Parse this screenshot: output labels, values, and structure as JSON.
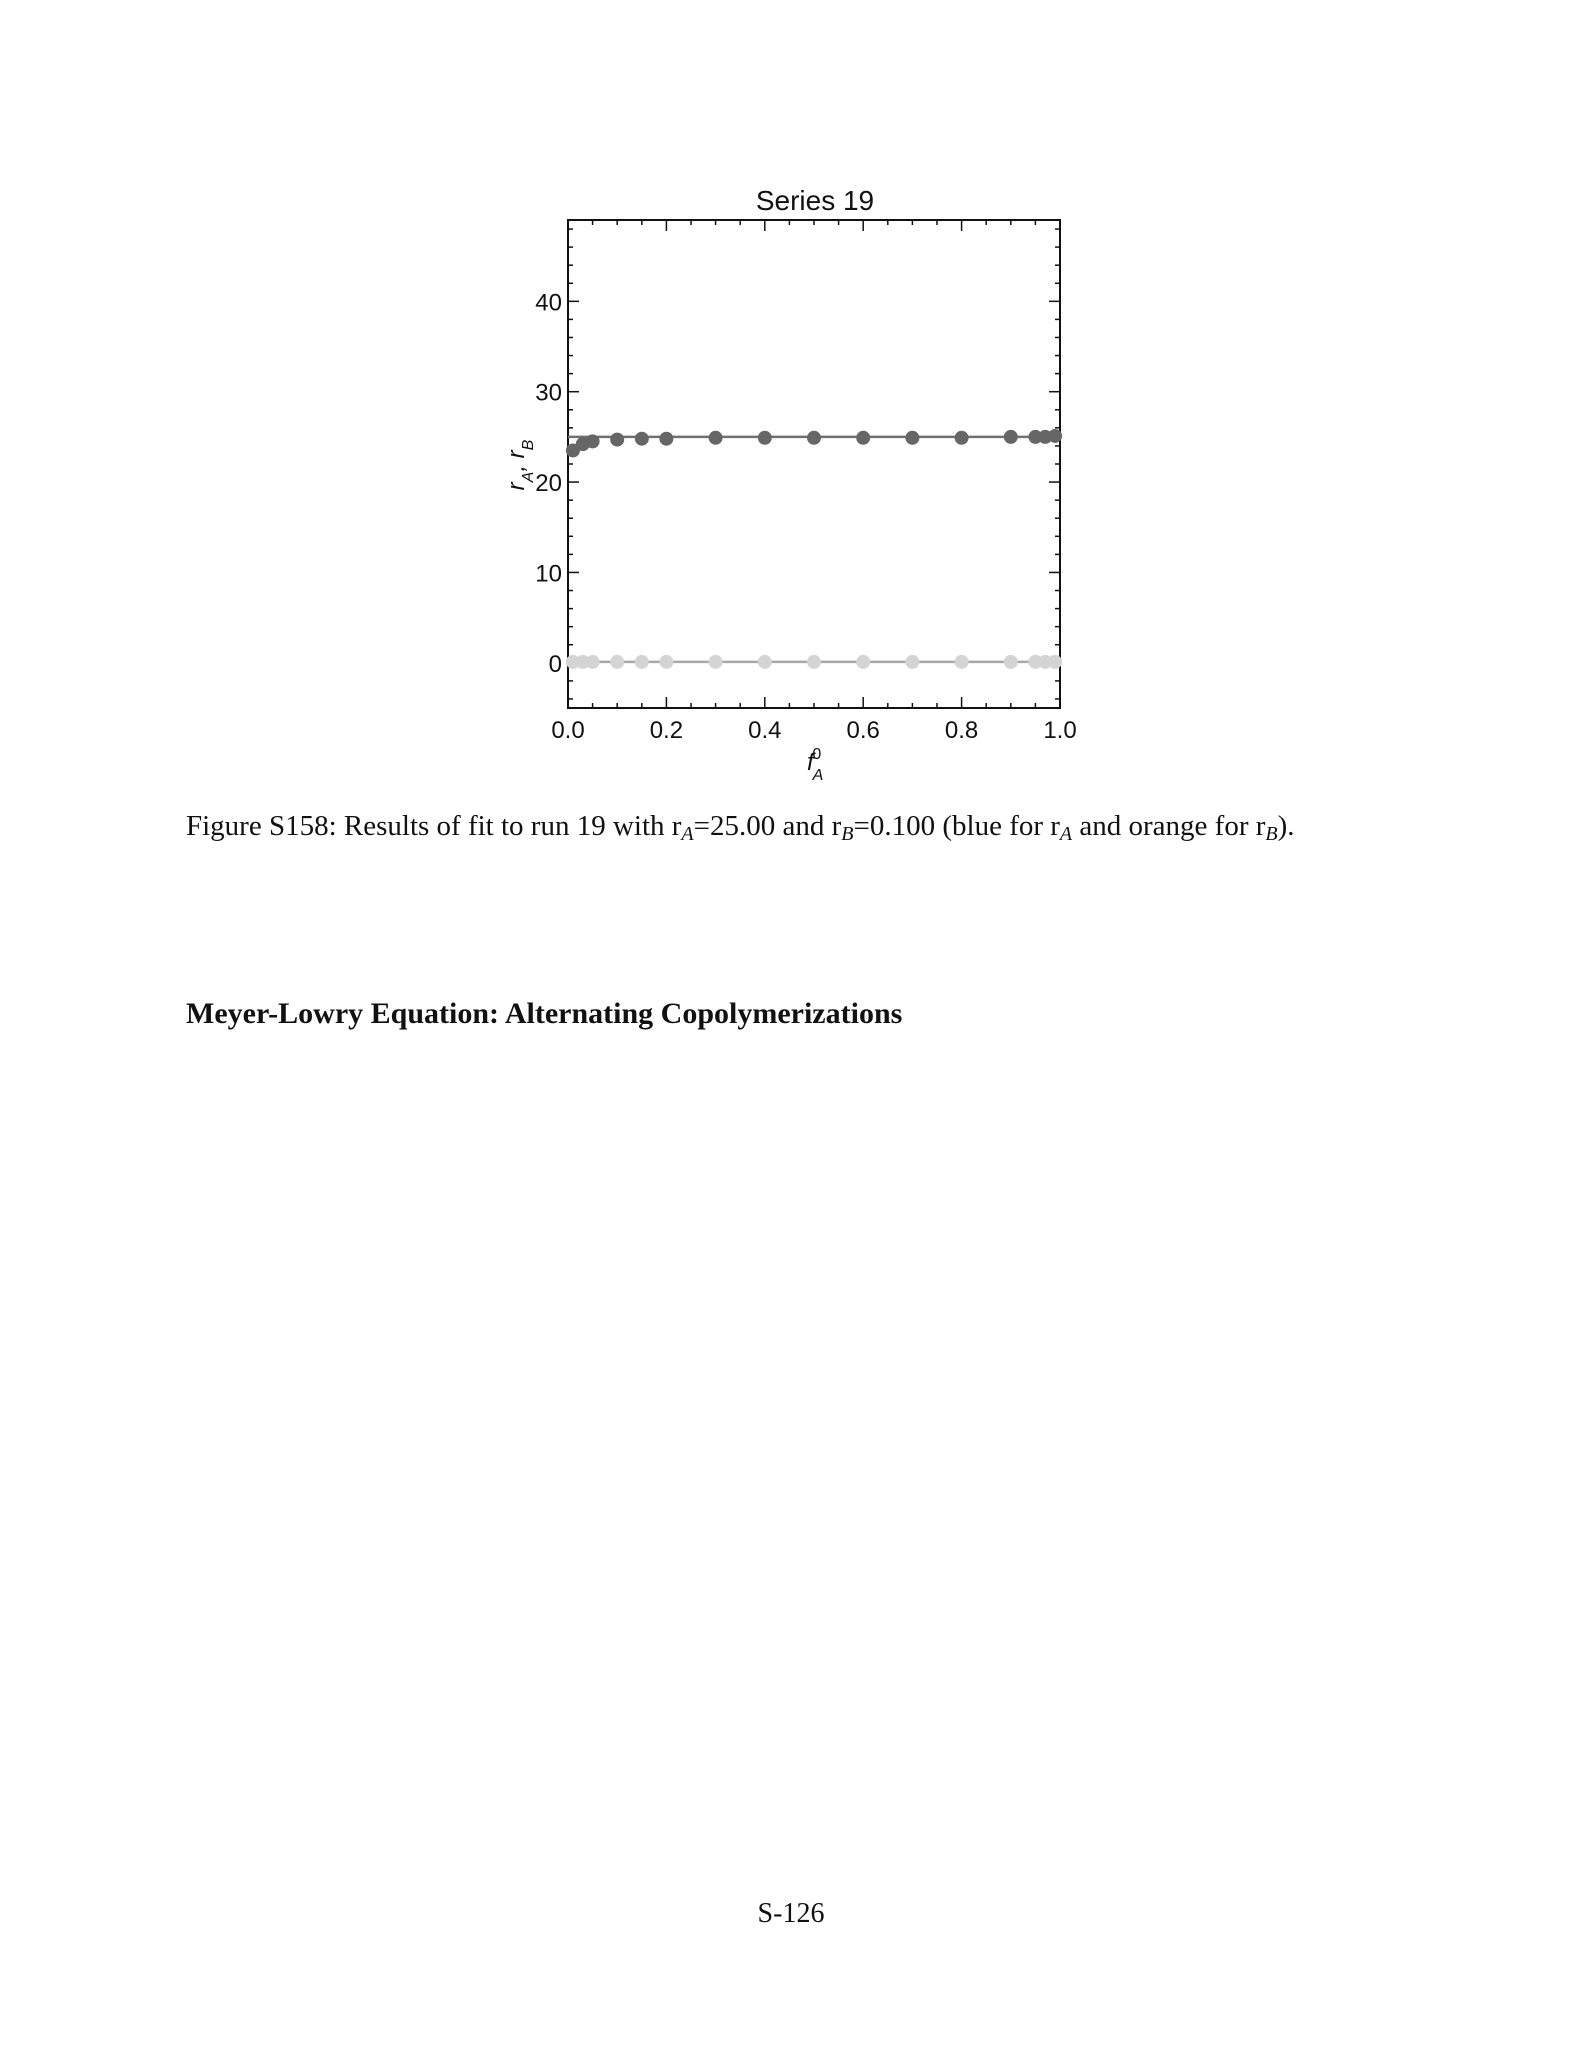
{
  "chart_data": {
    "type": "scatter",
    "title": "Series 19",
    "xlabel": "f_A^0",
    "ylabel": "r_A, r_B",
    "xlim": [
      0.0,
      1.0
    ],
    "ylim": [
      -5,
      49
    ],
    "xticks": [
      "0.0",
      "0.2",
      "0.4",
      "0.6",
      "0.8",
      "1.0"
    ],
    "yticks": [
      "0",
      "10",
      "20",
      "30",
      "40"
    ],
    "grid": false,
    "colors": {
      "rA": "#666666",
      "rB": "#d4d4d4",
      "fitA": "#707070",
      "fitB": "#a8a8a8"
    },
    "series": [
      {
        "x": [
          0.01,
          0.03,
          0.05,
          0.1,
          0.15,
          0.2,
          0.3,
          0.4,
          0.5,
          0.6,
          0.7,
          0.8,
          0.9,
          0.95,
          0.97,
          0.99
        ],
        "y": [
          23.5,
          24.2,
          24.5,
          24.7,
          24.8,
          24.8,
          24.9,
          24.9,
          24.9,
          24.9,
          24.9,
          24.9,
          25.0,
          25.0,
          25.0,
          25.1
        ]
      },
      {
        "x": [
          0.01,
          0.03,
          0.05,
          0.1,
          0.15,
          0.2,
          0.3,
          0.4,
          0.5,
          0.6,
          0.7,
          0.8,
          0.9,
          0.95,
          0.97,
          0.99
        ],
        "y": [
          0.1,
          0.1,
          0.1,
          0.1,
          0.1,
          0.1,
          0.1,
          0.1,
          0.1,
          0.1,
          0.1,
          0.1,
          0.1,
          0.1,
          0.1,
          0.1
        ]
      }
    ],
    "fits": [
      {
        "y": 25.0
      },
      {
        "y": 0.1
      }
    ]
  },
  "caption": {
    "lead": "Figure S158: Results of fit to run 19 with r",
    "sub_a": "A",
    "mid1": "=25.00 and r",
    "sub_b": "B",
    "mid2": "=0.100 (blue for r",
    "sub_a2": "A",
    "mid3": " and orange for r",
    "sub_b2": "B",
    "tail": ")."
  },
  "section_heading": "Meyer-Lowry Equation: Alternating Copolymerizations",
  "page_number": "S-126"
}
